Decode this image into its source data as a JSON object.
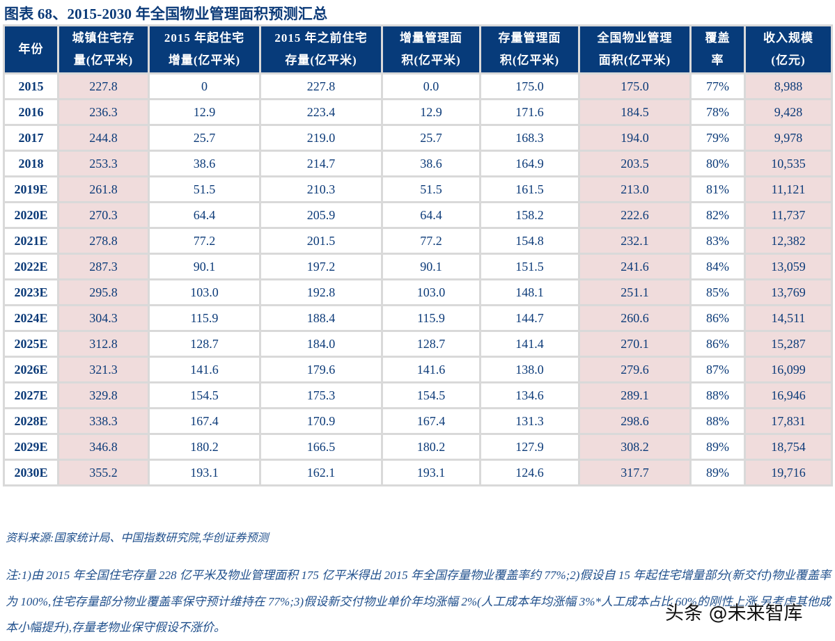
{
  "title": "图表 68、2015-2030 年全国物业管理面积预测汇总",
  "table": {
    "headers": [
      {
        "line1": "年份",
        "line2": ""
      },
      {
        "line1": "城镇住宅存",
        "line2": "量(亿平米)"
      },
      {
        "line1": "2015 年起住宅",
        "line2": "增量(亿平米)"
      },
      {
        "line1": "2015 年之前住宅",
        "line2": "存量(亿平米)"
      },
      {
        "line1": "增量管理面",
        "line2": "积(亿平米)"
      },
      {
        "line1": "存量管理面",
        "line2": "积(亿平米)"
      },
      {
        "line1": "全国物业管理",
        "line2": "面积(亿平米)"
      },
      {
        "line1": "覆盖",
        "line2": "率"
      },
      {
        "line1": "收入规模",
        "line2": "(亿元)"
      }
    ],
    "rows": [
      [
        "2015",
        "227.8",
        "0",
        "227.8",
        "0.0",
        "175.0",
        "175.0",
        "77%",
        "8,988"
      ],
      [
        "2016",
        "236.3",
        "12.9",
        "223.4",
        "12.9",
        "171.6",
        "184.5",
        "78%",
        "9,428"
      ],
      [
        "2017",
        "244.8",
        "25.7",
        "219.0",
        "25.7",
        "168.3",
        "194.0",
        "79%",
        "9,978"
      ],
      [
        "2018",
        "253.3",
        "38.6",
        "214.7",
        "38.6",
        "164.9",
        "203.5",
        "80%",
        "10,535"
      ],
      [
        "2019E",
        "261.8",
        "51.5",
        "210.3",
        "51.5",
        "161.5",
        "213.0",
        "81%",
        "11,121"
      ],
      [
        "2020E",
        "270.3",
        "64.4",
        "205.9",
        "64.4",
        "158.2",
        "222.6",
        "82%",
        "11,737"
      ],
      [
        "2021E",
        "278.8",
        "77.2",
        "201.5",
        "77.2",
        "154.8",
        "232.1",
        "83%",
        "12,382"
      ],
      [
        "2022E",
        "287.3",
        "90.1",
        "197.2",
        "90.1",
        "151.5",
        "241.6",
        "84%",
        "13,059"
      ],
      [
        "2023E",
        "295.8",
        "103.0",
        "192.8",
        "103.0",
        "148.1",
        "251.1",
        "85%",
        "13,769"
      ],
      [
        "2024E",
        "304.3",
        "115.9",
        "188.4",
        "115.9",
        "144.7",
        "260.6",
        "86%",
        "14,511"
      ],
      [
        "2025E",
        "312.8",
        "128.7",
        "184.0",
        "128.7",
        "141.4",
        "270.1",
        "86%",
        "15,287"
      ],
      [
        "2026E",
        "321.3",
        "141.6",
        "179.6",
        "141.6",
        "138.0",
        "279.6",
        "87%",
        "16,099"
      ],
      [
        "2027E",
        "329.8",
        "154.5",
        "175.3",
        "154.5",
        "134.6",
        "289.1",
        "88%",
        "16,946"
      ],
      [
        "2028E",
        "338.3",
        "167.4",
        "170.9",
        "167.4",
        "131.3",
        "298.6",
        "88%",
        "17,831"
      ],
      [
        "2029E",
        "346.8",
        "180.2",
        "166.5",
        "180.2",
        "127.9",
        "308.2",
        "89%",
        "18,754"
      ],
      [
        "2030E",
        "355.2",
        "193.1",
        "162.1",
        "193.1",
        "124.6",
        "317.7",
        "89%",
        "19,716"
      ]
    ],
    "colors": {
      "header_bg": "#073b7a",
      "header_text": "#ffffff",
      "highlight_bg": "#f0dcdc",
      "grid": "#d9d9d9",
      "text": "#0b3a78"
    }
  },
  "source": "资料来源:国家统计局、中国指数研究院,华创证券预测",
  "note": "注:1)由 2015 年全国住宅存量 228 亿平米及物业管理面积 175 亿平米得出 2015 年全国存量物业覆盖率约 77%;2)假设自 15 年起住宅增量部分(新交付)物业覆盖率为 100%,住宅存量部分物业覆盖率保守预计维持在 77%;3)假设新交付物业单价年均涨幅 2%(人工成本年均涨幅 3%*人工成本占比 60%的刚性上涨,另考虑其他成本小幅提升),存量老物业保守假设不涨价。",
  "watermark": "头条 @未来智库"
}
